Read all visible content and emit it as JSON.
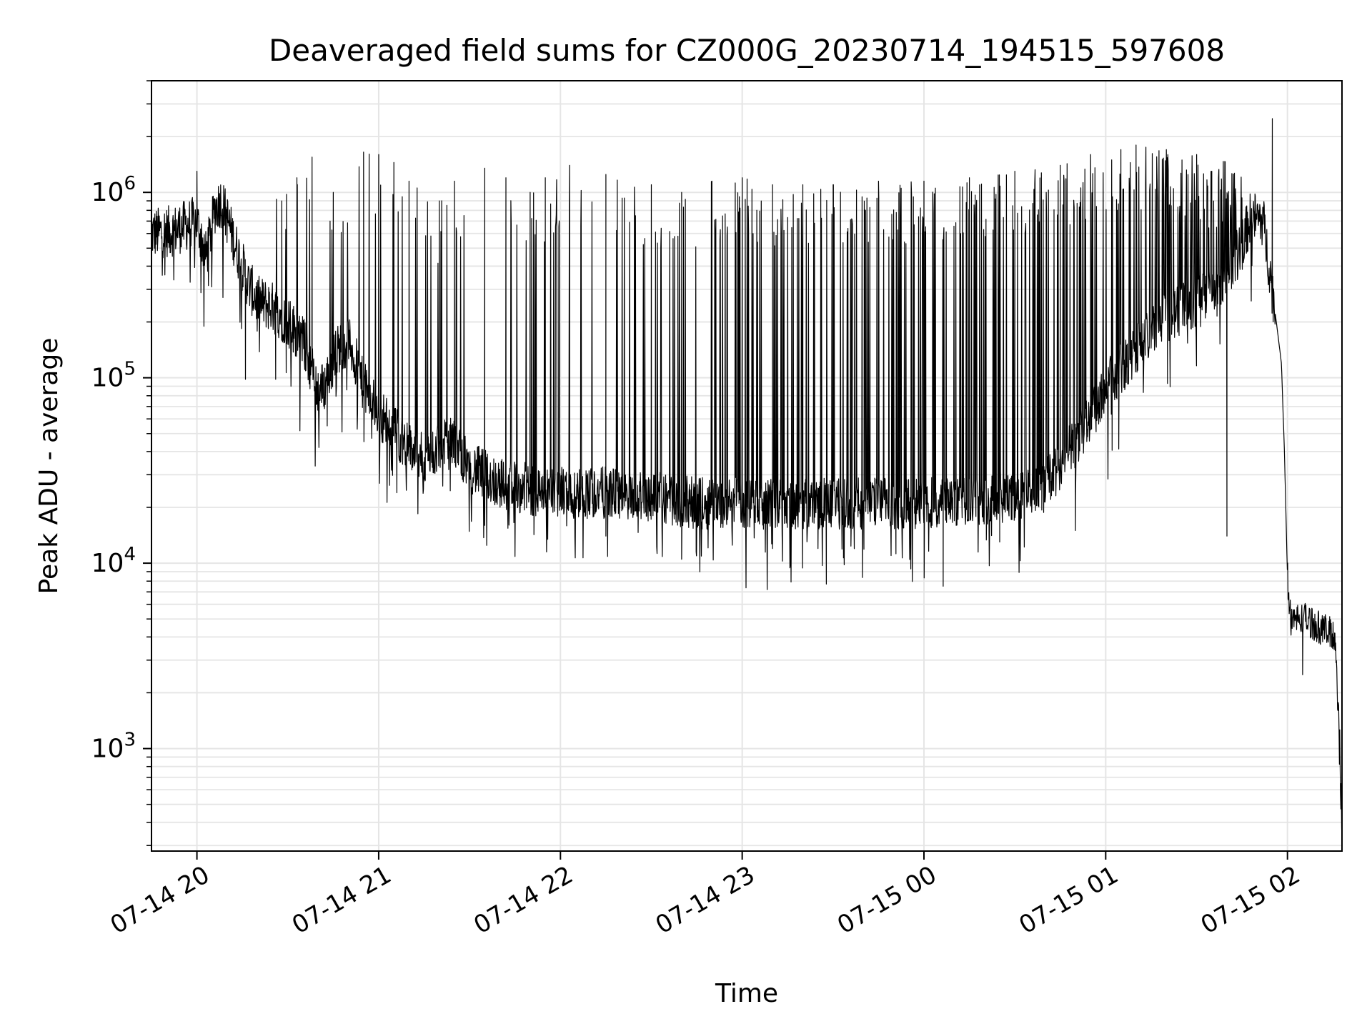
{
  "chart_data": {
    "type": "line",
    "title": "Deaveraged field sums for CZ000G_20230714_194515_597608",
    "xlabel": "Time",
    "ylabel": "Peak ADU - average",
    "y_scale": "log",
    "grid": true,
    "legend": "none",
    "line_color": "#000000",
    "grid_color": "#e5e5e5",
    "x_range": [
      "07-14 19:45",
      "07-15 02:18"
    ],
    "y_range": [
      280,
      4000000
    ],
    "x_ticks": [
      "07-14 20",
      "07-14 21",
      "07-14 22",
      "07-14 23",
      "07-15 00",
      "07-15 01",
      "07-15 02"
    ],
    "y_ticks": [
      {
        "base": "10",
        "exp": "3",
        "value": 1000
      },
      {
        "base": "10",
        "exp": "4",
        "value": 10000
      },
      {
        "base": "10",
        "exp": "5",
        "value": 100000
      },
      {
        "base": "10",
        "exp": "6",
        "value": 1000000
      }
    ],
    "series": [
      {
        "name": "",
        "baseline": [
          [
            "07-14 19:45",
            600000
          ],
          [
            "07-14 19:52",
            620000
          ],
          [
            "07-14 20:00",
            700000
          ],
          [
            "07-14 20:03",
            450000
          ],
          [
            "07-14 20:06",
            820000
          ],
          [
            "07-14 20:08",
            900000
          ],
          [
            "07-14 20:10",
            720000
          ],
          [
            "07-14 20:13",
            500000
          ],
          [
            "07-14 20:17",
            320000
          ],
          [
            "07-14 20:20",
            260000
          ],
          [
            "07-14 20:25",
            240000
          ],
          [
            "07-14 20:30",
            200000
          ],
          [
            "07-14 20:35",
            160000
          ],
          [
            "07-14 20:38",
            110000
          ],
          [
            "07-14 20:40",
            85000
          ],
          [
            "07-14 20:42",
            90000
          ],
          [
            "07-14 20:46",
            140000
          ],
          [
            "07-14 20:50",
            160000
          ],
          [
            "07-14 20:55",
            90000
          ],
          [
            "07-14 21:00",
            65000
          ],
          [
            "07-14 21:05",
            52000
          ],
          [
            "07-14 21:10",
            42000
          ],
          [
            "07-14 21:15",
            36000
          ],
          [
            "07-14 21:20",
            42000
          ],
          [
            "07-14 21:25",
            45000
          ],
          [
            "07-14 21:30",
            33000
          ],
          [
            "07-14 21:40",
            27000
          ],
          [
            "07-14 21:50",
            25000
          ],
          [
            "07-14 22:00",
            24000
          ],
          [
            "07-14 22:15",
            24000
          ],
          [
            "07-14 22:30",
            23000
          ],
          [
            "07-14 22:45",
            21000
          ],
          [
            "07-14 23:00",
            21000
          ],
          [
            "07-14 23:15",
            21000
          ],
          [
            "07-14 23:30",
            21000
          ],
          [
            "07-14 23:45",
            21000
          ],
          [
            "07-15 00:00",
            21000
          ],
          [
            "07-15 00:15",
            22000
          ],
          [
            "07-15 00:30",
            23000
          ],
          [
            "07-15 00:40",
            26000
          ],
          [
            "07-15 00:48",
            40000
          ],
          [
            "07-15 00:55",
            60000
          ],
          [
            "07-15 01:00",
            90000
          ],
          [
            "07-15 01:10",
            140000
          ],
          [
            "07-15 01:20",
            210000
          ],
          [
            "07-15 01:30",
            260000
          ],
          [
            "07-15 01:38",
            300000
          ],
          [
            "07-15 01:45",
            520000
          ],
          [
            "07-15 01:48",
            750000
          ],
          [
            "07-15 01:52",
            700000
          ],
          [
            "07-15 01:55",
            300000
          ],
          [
            "07-15 01:58",
            120000
          ],
          [
            "07-15 01:59",
            40000
          ],
          [
            "07-15 02:00",
            8500
          ],
          [
            "07-15 02:01",
            5000
          ],
          [
            "07-15 02:06",
            5000
          ],
          [
            "07-15 02:16",
            4000
          ],
          [
            "07-15 02:18",
            420
          ]
        ],
        "peaks": [
          [
            "07-14 20:00",
            1300000
          ],
          [
            "07-14 20:28",
            900000
          ],
          [
            "07-14 20:33",
            1200000
          ],
          [
            "07-14 20:38",
            1550000
          ],
          [
            "07-14 20:45",
            1000000
          ],
          [
            "07-14 20:55",
            1650000
          ],
          [
            "07-14 21:00",
            1600000
          ],
          [
            "07-14 21:05",
            1450000
          ],
          [
            "07-14 21:10",
            1150000
          ],
          [
            "07-14 21:20",
            900000
          ],
          [
            "07-14 21:25",
            1150000
          ],
          [
            "07-14 21:35",
            1350000
          ],
          [
            "07-14 21:42",
            1200000
          ],
          [
            "07-14 21:50",
            1000000
          ],
          [
            "07-14 21:55",
            1200000
          ],
          [
            "07-14 22:03",
            1400000
          ],
          [
            "07-14 22:15",
            1250000
          ],
          [
            "07-14 22:30",
            1100000
          ],
          [
            "07-14 22:40",
            1000000
          ],
          [
            "07-14 22:50",
            1150000
          ],
          [
            "07-14 23:00",
            1200000
          ],
          [
            "07-14 23:10",
            1100000
          ],
          [
            "07-14 23:20",
            1100000
          ],
          [
            "07-14 23:30",
            1100000
          ],
          [
            "07-14 23:45",
            1150000
          ],
          [
            "07-15 00:00",
            1150000
          ],
          [
            "07-15 00:15",
            1200000
          ],
          [
            "07-15 00:30",
            1300000
          ],
          [
            "07-15 00:45",
            1400000
          ],
          [
            "07-15 00:55",
            1600000
          ],
          [
            "07-15 01:05",
            1700000
          ],
          [
            "07-15 01:10",
            1800000
          ],
          [
            "07-15 01:20",
            1700000
          ],
          [
            "07-15 01:30",
            1600000
          ],
          [
            "07-15 01:35",
            1300000
          ],
          [
            "07-15 01:55",
            2500000
          ]
        ],
        "dips": [
          [
            "07-14 20:16",
            98000
          ],
          [
            "07-14 20:26",
            98000
          ],
          [
            "07-14 20:43",
            55000
          ],
          [
            "07-14 21:06",
            24000
          ],
          [
            "07-14 21:35",
            16000
          ],
          [
            "07-14 22:15",
            14000
          ],
          [
            "07-14 22:40",
            10500
          ],
          [
            "07-14 23:10",
            12000
          ],
          [
            "07-14 23:25",
            12000
          ],
          [
            "07-15 00:25",
            13000
          ],
          [
            "07-15 00:50",
            15000
          ],
          [
            "07-15 01:40",
            14000
          ],
          [
            "07-15 02:05",
            2500
          ]
        ]
      }
    ]
  }
}
